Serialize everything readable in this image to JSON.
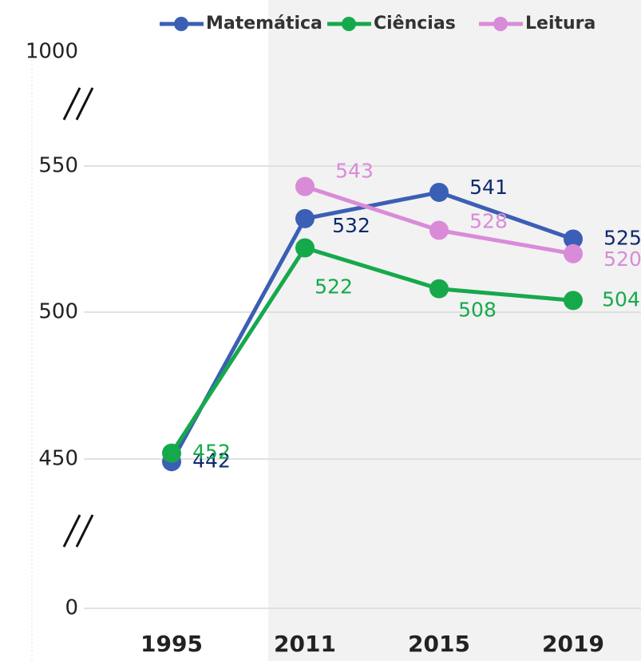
{
  "chart_data": {
    "type": "line",
    "categories": [
      "1995",
      "2011",
      "2015",
      "2019"
    ],
    "series": [
      {
        "name": "Matemática",
        "color": "#3b5fb4",
        "label_color": "#0e2a6e",
        "values": [
          442,
          532,
          541,
          525
        ]
      },
      {
        "name": "Ciências",
        "color": "#16a94c",
        "label_color": "#16a94c",
        "values": [
          452,
          522,
          508,
          504
        ]
      },
      {
        "name": "Leitura",
        "color": "#d98bd8",
        "label_color": "#d98bd8",
        "values": [
          null,
          543,
          528,
          520
        ]
      }
    ],
    "ylim": [
      0,
      1000
    ],
    "yticks": [
      0,
      450,
      500,
      550,
      1000
    ],
    "axis_break": true,
    "grid": true,
    "legend": "top"
  }
}
